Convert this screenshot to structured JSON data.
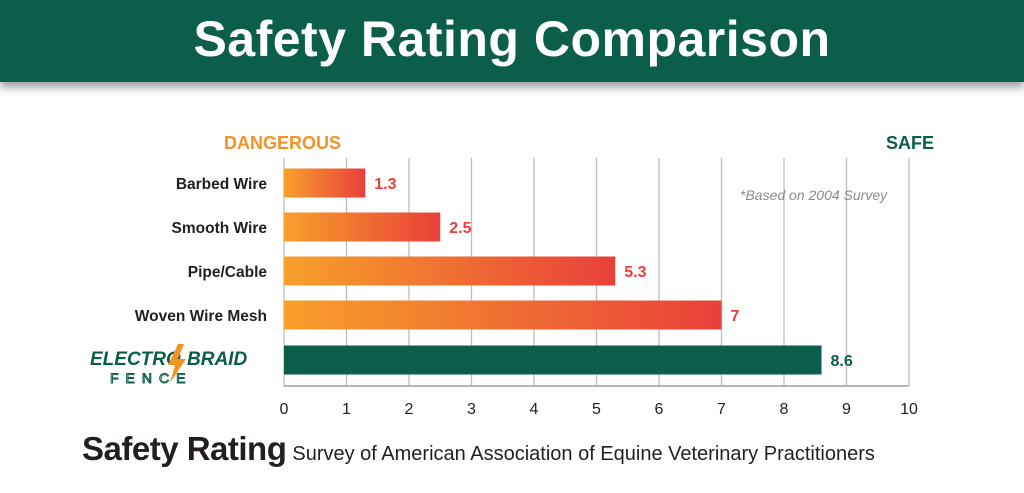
{
  "header": {
    "title": "Safety Rating Comparison"
  },
  "scale_labels": {
    "left": "DANGEROUS",
    "right": "SAFE"
  },
  "footnote": "*Based on 2004 Survey",
  "footer": {
    "title": "Safety Rating",
    "subtitle": "Survey of American Association of Equine Veterinary Practitioners"
  },
  "logo": {
    "text_top_left": "ELECTRO",
    "text_top_right": "BRAID",
    "text_bottom": "FENCE"
  },
  "colors": {
    "header": "#0a5e4a",
    "gradient_start": "#f7a02a",
    "gradient_end": "#e8403a",
    "highlight_bar": "#0a5e4a",
    "label_red": "#e8403a"
  },
  "chart_data": {
    "type": "bar",
    "orientation": "horizontal",
    "categories": [
      "Barbed Wire",
      "Smooth Wire",
      "Pipe/Cable",
      "Woven Wire Mesh",
      "ELECTROBRAID FENCE"
    ],
    "values": [
      1.3,
      2.5,
      5.3,
      7,
      8.6
    ],
    "value_labels": [
      "1.3",
      "2.5",
      "5.3",
      "7",
      "8.6"
    ],
    "xlim": [
      0,
      10
    ],
    "xticks": [
      0,
      1,
      2,
      3,
      4,
      5,
      6,
      7,
      8,
      9,
      10
    ],
    "grid": true,
    "xlabel": "",
    "ylabel": ""
  }
}
